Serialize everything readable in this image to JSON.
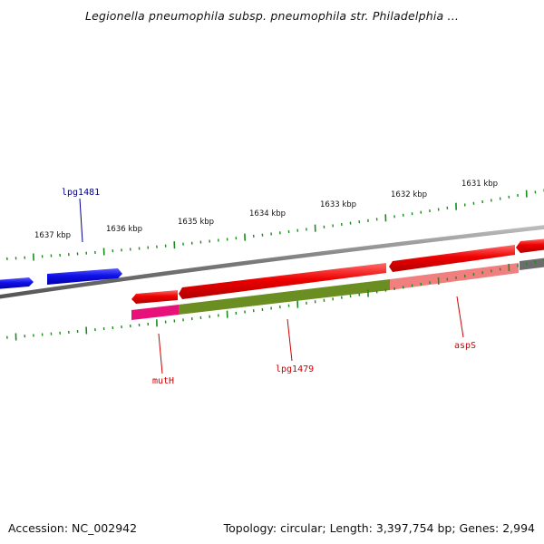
{
  "header": {
    "title": "Legionella pneumophila subsp. pneumophila str. Philadelphia ..."
  },
  "footer": {
    "accession": "Accession: NC_002942",
    "summary": "Topology: circular; Length: 3,397,754 bp; Genes: 2,994"
  },
  "map": {
    "tick_labels": [
      "1637 kbp",
      "1636 kbp",
      "1635 kbp",
      "1634 kbp",
      "1633 kbp",
      "1632 kbp",
      "1631 kbp"
    ],
    "genes": [
      {
        "name": "lpg1481",
        "color": "#00008b"
      },
      {
        "name": "mutH",
        "color": "#cc0000"
      },
      {
        "name": "lpg1479",
        "color": "#cc0000"
      },
      {
        "name": "aspS",
        "color": "#cc0000"
      }
    ],
    "colors": {
      "backbone": "#7a7a7a",
      "forward_cds": "#1010e8",
      "reverse_cds": "#ee0000",
      "ticks": "#1a8c1a",
      "feature_pink": "#e8117a",
      "feature_olive": "#6b8e23",
      "feature_salmon": "#f08080",
      "feature_gray": "#6d6d6d"
    }
  }
}
